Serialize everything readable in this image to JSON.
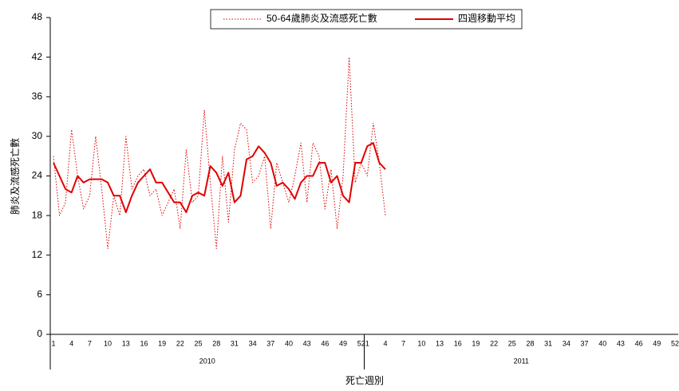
{
  "chart_data": {
    "type": "line",
    "y_label": "肺炎及流感死亡數",
    "x_label": "死亡週別",
    "x_groups": [
      "2010",
      "2011"
    ],
    "categories": [
      "1",
      null,
      null,
      "4",
      null,
      null,
      "7",
      null,
      null,
      "10",
      null,
      null,
      "13",
      null,
      null,
      "16",
      null,
      null,
      "19",
      null,
      null,
      "22",
      null,
      null,
      "25",
      null,
      null,
      "28",
      null,
      null,
      "31",
      null,
      null,
      "34",
      null,
      null,
      "37",
      null,
      null,
      "40",
      null,
      null,
      "43",
      null,
      null,
      "46",
      null,
      null,
      "49",
      null,
      null,
      "52",
      "1",
      null,
      null,
      "4",
      null,
      null,
      "7",
      null,
      null,
      "10",
      null,
      null,
      "13",
      null,
      null,
      "16",
      null,
      null,
      "19",
      null,
      null,
      "22",
      null,
      null,
      "25",
      null,
      null,
      "28",
      null,
      null,
      "31",
      null,
      null,
      "34",
      null,
      null,
      "37",
      null,
      null,
      "40",
      null,
      null,
      "43",
      null,
      null,
      "46",
      null,
      null,
      "49",
      null,
      null,
      "52"
    ],
    "series": [
      {
        "name": "50-64歲肺炎及流感死亡數",
        "color": "#e00000",
        "style": "dotted",
        "values": [
          27,
          18,
          20,
          31,
          24,
          19,
          21,
          30,
          22,
          13,
          21,
          18,
          30,
          22,
          24,
          25,
          21,
          22,
          18,
          20,
          22,
          16,
          28,
          20,
          21,
          34,
          23,
          13,
          27,
          17,
          28,
          32,
          31,
          23,
          24,
          27,
          16,
          26,
          23,
          20,
          24,
          29,
          20,
          29,
          27,
          19,
          25,
          16,
          24,
          42,
          23,
          26,
          24,
          32,
          26,
          18,
          null,
          null,
          null,
          null,
          null,
          null,
          null,
          null,
          null,
          null,
          null,
          null,
          null,
          null,
          null,
          null,
          null,
          null,
          null,
          null,
          null,
          null,
          null,
          null,
          null,
          null,
          null,
          null,
          null,
          null,
          null,
          null,
          null,
          null,
          null,
          null,
          null,
          null,
          null,
          null,
          null,
          null,
          null,
          null,
          null,
          null,
          null,
          null
        ]
      },
      {
        "name": "四週移動平均",
        "color": "#e00000",
        "style": "solid",
        "values": [
          26,
          24,
          22,
          21.5,
          24,
          23,
          23.5,
          23.5,
          23.5,
          23,
          21,
          21,
          18.5,
          21,
          23,
          24,
          25,
          23,
          23,
          21.5,
          20,
          20,
          18.5,
          21,
          21.5,
          21,
          25.5,
          24.5,
          22.5,
          24.5,
          20,
          21,
          26.5,
          27,
          28.5,
          27.5,
          26,
          22.5,
          23,
          22,
          20.5,
          23,
          24,
          24,
          26,
          26,
          23,
          24,
          21,
          20,
          26,
          26,
          28.5,
          29,
          26,
          25,
          null,
          null,
          null,
          null,
          null,
          null,
          null,
          null,
          null,
          null,
          null,
          null,
          null,
          null,
          null,
          null,
          null,
          null,
          null,
          null,
          null,
          null,
          null,
          null,
          null,
          null,
          null,
          null,
          null,
          null,
          null,
          null,
          null,
          null,
          null,
          null,
          null,
          null,
          null,
          null,
          null,
          null,
          null,
          null,
          null,
          null,
          null,
          null
        ]
      }
    ],
    "ylim": [
      0,
      48
    ],
    "yticks": [
      0,
      6,
      12,
      18,
      24,
      30,
      36,
      42,
      48
    ],
    "legend": "top"
  }
}
